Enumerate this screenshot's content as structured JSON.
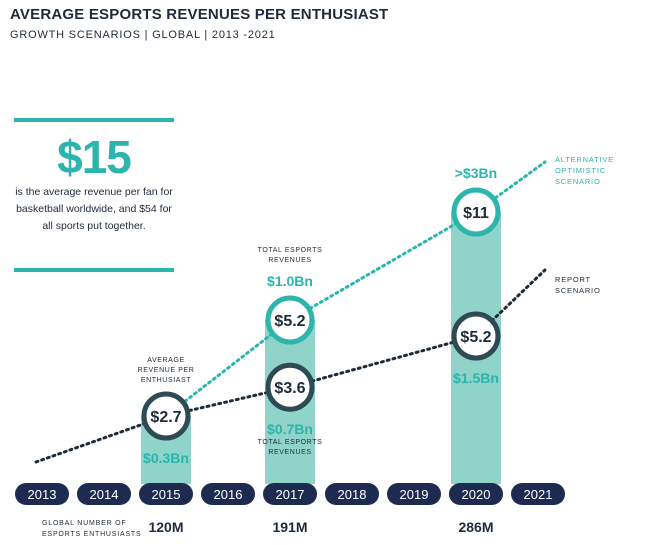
{
  "header": {
    "title": "AVERAGE ESPORTS REVENUES PER ENTHUSIAST",
    "subtitle": "GROWTH SCENARIOS | GLOBAL | 2013 -2021"
  },
  "callout": {
    "value": "$15",
    "text": "is the average revenue per fan for basketball worldwide, and $54 for all sports put together."
  },
  "colors": {
    "teal": "#2bb5ad",
    "teal_bar": "#8fd3c9",
    "navy": "#1f2a3a",
    "report_ring": "#2d4a55"
  },
  "chart_data": {
    "type": "bar",
    "title": "AVERAGE ESPORTS REVENUES PER ENTHUSIAST",
    "subtitle": "GROWTH SCENARIOS | GLOBAL | 2013 -2021",
    "years": [
      "2013",
      "2014",
      "2015",
      "2016",
      "2017",
      "2018",
      "2019",
      "2020",
      "2021"
    ],
    "x_axis_label": "GLOBAL NUMBER OF ESPORTS ENTHUSIASTS",
    "enthusiasts": [
      {
        "year": "2015",
        "label": "120M"
      },
      {
        "year": "2017",
        "label": "191M"
      },
      {
        "year": "2020",
        "label": "286M"
      }
    ],
    "series": [
      {
        "name": "REPORT SCENARIO",
        "points": [
          {
            "year": "2015",
            "value": 2.7,
            "label": "$2.7",
            "revenue": "$0.3Bn"
          },
          {
            "year": "2017",
            "value": 3.6,
            "label": "$3.6",
            "revenue": "$0.7Bn"
          },
          {
            "year": "2020",
            "value": 5.2,
            "label": "$5.2",
            "revenue": "$1.5Bn"
          }
        ]
      },
      {
        "name": "ALTERNATIVE OPTIMISTIC SCENARIO",
        "points": [
          {
            "year": "2015",
            "value": 2.7,
            "label": "$2.7"
          },
          {
            "year": "2017",
            "value": 5.2,
            "label": "$5.2",
            "revenue": "$1.0Bn"
          },
          {
            "year": "2020",
            "value": 11,
            "label": "$11",
            "revenue": ">$3Bn"
          }
        ]
      }
    ],
    "annotations": {
      "avg_revenue_label": "AVERAGE REVENUE PER ENTHUSIAST",
      "total_revenues_label": "TOTAL ESPORTS REVENUES"
    }
  }
}
